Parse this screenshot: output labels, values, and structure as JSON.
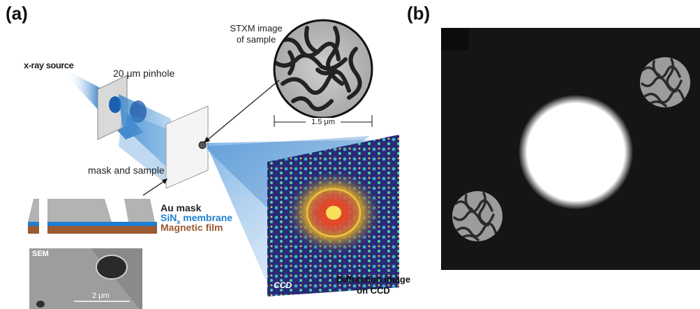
{
  "panels": {
    "a_label": "(a)",
    "b_label": "(b)"
  },
  "labels": {
    "xray_source": "x-ray source",
    "pinhole": "20 μm pinhole",
    "mask_sample": "mask and sample",
    "stxm_line1": "STXM image",
    "stxm_line2": "of sample",
    "scale_stxm": "1.5 μm",
    "au_mask": "Au mask",
    "sin_membrane": "SiN membrane",
    "sin_subscript": "x",
    "magnetic_film": "Magnetic film",
    "sem": "SEM",
    "scale_sem": "2 μm",
    "ccd": "CCD",
    "diffraction_line1": "Diffraction image",
    "diffraction_line2": "on CCD"
  },
  "colors": {
    "au_mask": "#b3b3b3",
    "sin_membrane": "#1f7fd1",
    "magnetic_film": "#9a5a32",
    "beam": "#2f7fc8",
    "ccd_bg": "#2a2a78"
  }
}
